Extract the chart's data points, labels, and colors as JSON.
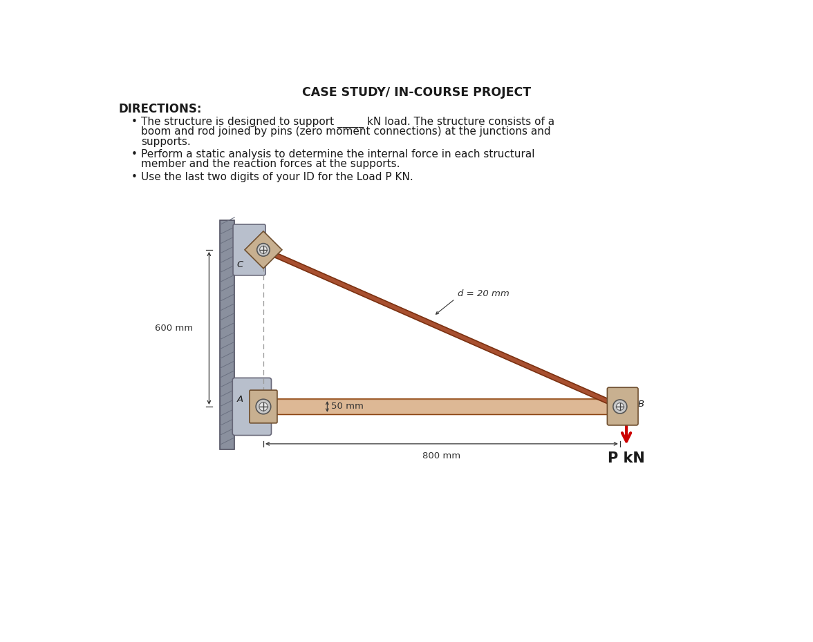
{
  "title": "CASE STUDY/ IN-COURSE PROJECT",
  "directions_header": "DIRECTIONS:",
  "bullet1_line1": "The structure is designed to support _____ kN load. The structure consists of a",
  "bullet1_line2": "boom and rod joined by pins (zero moment connections) at the junctions and",
  "bullet1_line3": "supports.",
  "bullet2_line1": "Perform a static analysis to determine the internal force in each structural",
  "bullet2_line2": "member and the reaction forces at the supports.",
  "bullet3": "Use the last two digits of your ID for the Load P KN.",
  "dim_rod": "d = 20 mm",
  "dim_height": "600 mm",
  "dim_width": "800 mm",
  "dim_boom": "50 mm",
  "label_A": "A",
  "label_B": "B",
  "label_C": "C",
  "load_label": "P kN",
  "wall_color": "#b8bfcc",
  "wall_dark": "#8a909e",
  "boom_color_dark": "#c07850",
  "boom_color_light": "#ddb895",
  "boom_top_edge": "#a06030",
  "rod_color": "#a85030",
  "rod_edge": "#7a3010",
  "plate_color": "#c8b090",
  "plate_edge": "#705030",
  "background": "#ffffff",
  "pin_outer": "#c8c8c8",
  "pin_inner": "#e8e8e8",
  "pin_cross": "#444444",
  "arrow_color": "#cc0000",
  "text_color": "#1a1a1a",
  "dim_color": "#333333",
  "dash_color": "#999999",
  "hatch_color": "#6a7080"
}
